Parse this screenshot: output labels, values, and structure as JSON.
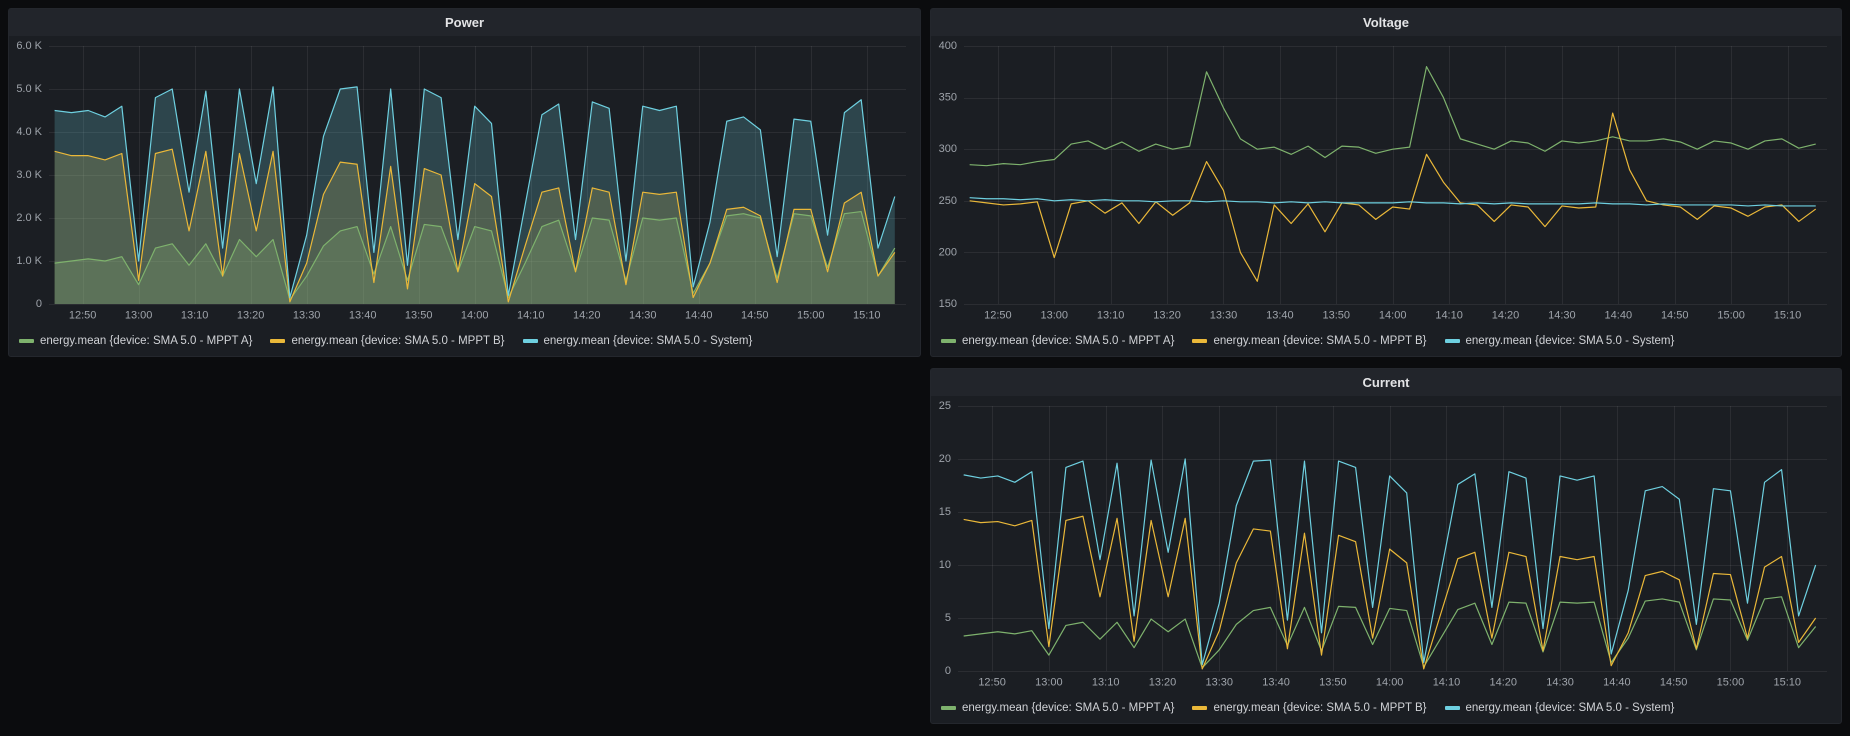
{
  "colors": {
    "green": "#7eb26d",
    "yellow": "#eab839",
    "blue": "#6ed0e0",
    "grid": "rgba(255,255,255,0.07)",
    "axis_text": "#9fa4ab",
    "panel_bg": "#1b1e23",
    "page_bg": "#0b0c0e"
  },
  "time_axis": {
    "start_min": 765,
    "step_min": 3,
    "xlim_min": [
      764,
      917
    ],
    "ticks": [
      {
        "min": 770,
        "label": "12:50"
      },
      {
        "min": 780,
        "label": "13:00"
      },
      {
        "min": 790,
        "label": "13:10"
      },
      {
        "min": 800,
        "label": "13:20"
      },
      {
        "min": 810,
        "label": "13:30"
      },
      {
        "min": 820,
        "label": "13:40"
      },
      {
        "min": 830,
        "label": "13:50"
      },
      {
        "min": 840,
        "label": "14:00"
      },
      {
        "min": 850,
        "label": "14:10"
      },
      {
        "min": 860,
        "label": "14:20"
      },
      {
        "min": 870,
        "label": "14:30"
      },
      {
        "min": 880,
        "label": "14:40"
      },
      {
        "min": 890,
        "label": "14:50"
      },
      {
        "min": 900,
        "label": "15:00"
      },
      {
        "min": 910,
        "label": "15:10"
      }
    ]
  },
  "chart_data": [
    {
      "type": "line",
      "title": "Power",
      "fill": true,
      "fill_alpha": 0.22,
      "ylim": [
        0,
        6000
      ],
      "yticks": [
        0,
        1000,
        2000,
        3000,
        4000,
        5000,
        6000
      ],
      "ytick_labels": [
        "0",
        "1.0 K",
        "2.0 K",
        "3.0 K",
        "4.0 K",
        "5.0 K",
        "6.0 K"
      ],
      "legend_position": "bottom",
      "grid": true,
      "series": [
        {
          "name": "energy.mean {device: SMA 5.0 - MPPT A}",
          "color": "#7eb26d",
          "values": [
            950,
            1000,
            1050,
            1000,
            1100,
            450,
            1300,
            1400,
            900,
            1400,
            650,
            1500,
            1100,
            1500,
            100,
            650,
            1350,
            1700,
            1800,
            700,
            1800,
            550,
            1850,
            1800,
            750,
            1800,
            1700,
            150,
            950,
            1800,
            1950,
            750,
            2000,
            1950,
            550,
            2000,
            1950,
            2000,
            250,
            950,
            2050,
            2100,
            2000,
            600,
            2100,
            2050,
            850,
            2100,
            2150,
            650,
            1300
          ]
        },
        {
          "name": "energy.mean {device: SMA 5.0 - MPPT B}",
          "color": "#eab839",
          "values": [
            3550,
            3450,
            3450,
            3350,
            3500,
            550,
            3500,
            3600,
            1700,
            3550,
            650,
            3500,
            1700,
            3550,
            50,
            950,
            2550,
            3300,
            3250,
            500,
            3200,
            350,
            3150,
            3000,
            750,
            2800,
            2500,
            50,
            1350,
            2600,
            2700,
            750,
            2700,
            2600,
            450,
            2600,
            2550,
            2600,
            150,
            950,
            2200,
            2250,
            2050,
            500,
            2200,
            2200,
            750,
            2350,
            2600,
            650,
            1200
          ]
        },
        {
          "name": "energy.mean {device: SMA 5.0 - System}",
          "color": "#6ed0e0",
          "values": [
            4500,
            4450,
            4500,
            4350,
            4600,
            1000,
            4800,
            5000,
            2600,
            4950,
            1300,
            5000,
            2800,
            5050,
            150,
            1600,
            3900,
            5000,
            5050,
            1200,
            5000,
            900,
            5000,
            4800,
            1500,
            4600,
            4200,
            200,
            2300,
            4400,
            4650,
            1500,
            4700,
            4550,
            1000,
            4600,
            4500,
            4600,
            400,
            1900,
            4250,
            4350,
            4050,
            1100,
            4300,
            4250,
            1600,
            4450,
            4750,
            1300,
            2500
          ]
        }
      ]
    },
    {
      "type": "line",
      "title": "Voltage",
      "fill": false,
      "ylim": [
        150,
        400
      ],
      "yticks": [
        150,
        200,
        250,
        300,
        350,
        400
      ],
      "ytick_labels": [
        "150",
        "200",
        "250",
        "300",
        "350",
        "400"
      ],
      "legend_position": "bottom",
      "grid": true,
      "series": [
        {
          "name": "energy.mean {device: SMA 5.0 - MPPT A}",
          "color": "#7eb26d",
          "values": [
            285,
            284,
            286,
            285,
            288,
            290,
            305,
            308,
            300,
            307,
            298,
            305,
            300,
            303,
            375,
            340,
            310,
            300,
            302,
            295,
            303,
            292,
            303,
            302,
            296,
            300,
            302,
            380,
            350,
            310,
            305,
            300,
            308,
            306,
            298,
            308,
            306,
            308,
            312,
            308,
            308,
            310,
            307,
            300,
            308,
            306,
            300,
            308,
            310,
            301,
            305
          ]
        },
        {
          "name": "energy.mean {device: SMA 5.0 - MPPT B}",
          "color": "#eab839",
          "values": [
            250,
            248,
            246,
            247,
            249,
            195,
            247,
            250,
            238,
            248,
            228,
            249,
            236,
            248,
            288,
            260,
            200,
            172,
            246,
            228,
            247,
            220,
            248,
            246,
            232,
            244,
            242,
            295,
            268,
            248,
            246,
            230,
            246,
            244,
            225,
            245,
            243,
            244,
            335,
            280,
            250,
            246,
            244,
            232,
            245,
            243,
            235,
            244,
            246,
            230,
            242
          ]
        },
        {
          "name": "energy.mean {device: SMA 5.0 - System}",
          "color": "#6ed0e0",
          "values": [
            253,
            252,
            252,
            251,
            252,
            250,
            251,
            250,
            251,
            250,
            250,
            249,
            250,
            250,
            249,
            250,
            249,
            249,
            248,
            249,
            248,
            249,
            248,
            248,
            248,
            248,
            249,
            248,
            248,
            247,
            248,
            247,
            248,
            247,
            247,
            247,
            247,
            248,
            247,
            247,
            246,
            247,
            246,
            246,
            246,
            246,
            245,
            246,
            245,
            245,
            245
          ]
        }
      ]
    },
    {
      "type": "line",
      "title": "Current",
      "fill": false,
      "ylim": [
        0,
        25
      ],
      "yticks": [
        0,
        5,
        10,
        15,
        20,
        25
      ],
      "ytick_labels": [
        "0",
        "5",
        "10",
        "15",
        "20",
        "25"
      ],
      "legend_position": "bottom",
      "grid": true,
      "series": [
        {
          "name": "energy.mean {device: SMA 5.0 - MPPT A}",
          "color": "#7eb26d",
          "values": [
            3.3,
            3.5,
            3.7,
            3.5,
            3.8,
            1.5,
            4.3,
            4.6,
            3.0,
            4.6,
            2.2,
            4.9,
            3.7,
            4.9,
            0.3,
            2.0,
            4.4,
            5.7,
            6.0,
            2.4,
            6.0,
            1.9,
            6.1,
            6.0,
            2.5,
            5.9,
            5.7,
            0.4,
            3.1,
            5.8,
            6.4,
            2.5,
            6.5,
            6.4,
            1.8,
            6.5,
            6.4,
            6.5,
            0.8,
            3.1,
            6.6,
            6.8,
            6.5,
            2.0,
            6.8,
            6.7,
            2.9,
            6.8,
            7.0,
            2.2,
            4.2
          ]
        },
        {
          "name": "energy.mean {device: SMA 5.0 - MPPT B}",
          "color": "#eab839",
          "values": [
            14.3,
            14.0,
            14.1,
            13.7,
            14.2,
            2.3,
            14.2,
            14.6,
            7.0,
            14.4,
            2.8,
            14.2,
            7.0,
            14.4,
            0.2,
            3.8,
            10.2,
            13.4,
            13.2,
            2.1,
            13.0,
            1.5,
            12.8,
            12.2,
            3.1,
            11.5,
            10.2,
            0.2,
            5.4,
            10.6,
            11.2,
            3.1,
            11.2,
            10.8,
            1.9,
            10.8,
            10.5,
            10.8,
            0.5,
            3.6,
            9.0,
            9.4,
            8.6,
            2.1,
            9.2,
            9.1,
            3.1,
            9.8,
            10.8,
            2.7,
            5.0
          ]
        },
        {
          "name": "energy.mean {device: SMA 5.0 - System}",
          "color": "#6ed0e0",
          "values": [
            18.5,
            18.2,
            18.4,
            17.8,
            18.8,
            4.0,
            19.2,
            19.8,
            10.5,
            19.6,
            5.2,
            19.9,
            11.2,
            20.0,
            0.6,
            6.4,
            15.6,
            19.8,
            19.9,
            4.8,
            19.8,
            3.6,
            19.8,
            19.2,
            6.0,
            18.4,
            16.8,
            0.8,
            9.2,
            17.6,
            18.6,
            6.0,
            18.8,
            18.2,
            4.0,
            18.4,
            18.0,
            18.4,
            1.6,
            7.6,
            17.0,
            17.4,
            16.2,
            4.4,
            17.2,
            17.0,
            6.4,
            17.8,
            19.0,
            5.2,
            10.0
          ]
        }
      ]
    }
  ]
}
